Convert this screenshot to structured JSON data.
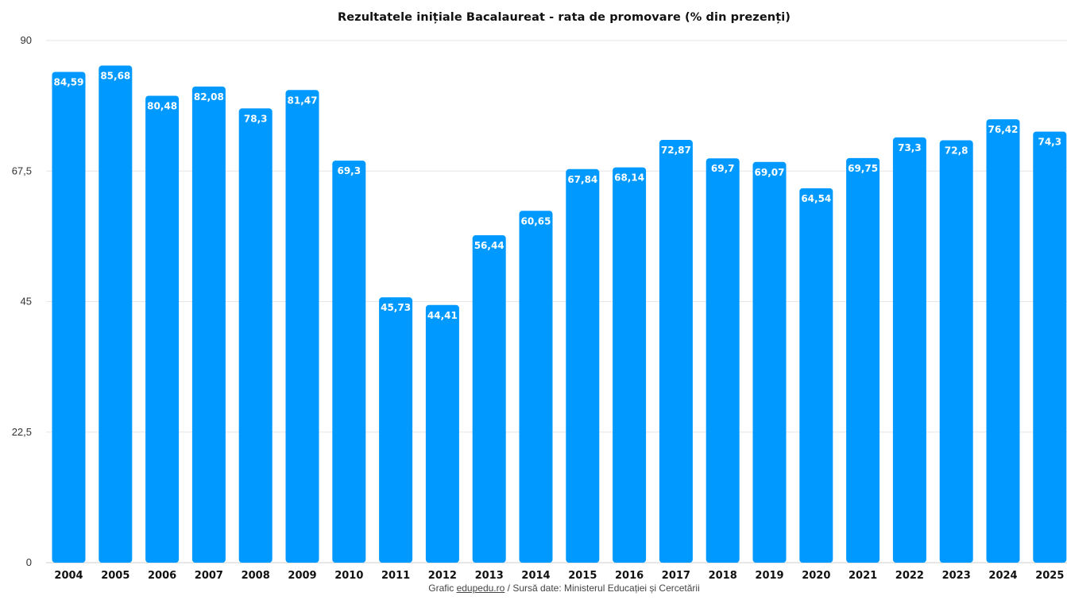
{
  "chart_data": {
    "type": "bar",
    "title": "Rezultatele inițiale Bacalaureat - rata de promovare (% din prezenți)",
    "categories": [
      "2004",
      "2005",
      "2006",
      "2007",
      "2008",
      "2009",
      "2010",
      "2011",
      "2012",
      "2013",
      "2014",
      "2015",
      "2016",
      "2017",
      "2018",
      "2019",
      "2020",
      "2021",
      "2022",
      "2023",
      "2024",
      "2025"
    ],
    "values": [
      84.59,
      85.68,
      80.48,
      82.08,
      78.3,
      81.47,
      69.3,
      45.73,
      44.41,
      56.44,
      60.65,
      67.84,
      68.14,
      72.87,
      69.7,
      69.07,
      64.54,
      69.75,
      73.3,
      72.8,
      76.42,
      74.3
    ],
    "data_labels": [
      "84,59",
      "85,68",
      "80,48",
      "82,08",
      "78,3",
      "81,47",
      "69,3",
      "45,73",
      "44,41",
      "56,44",
      "60,65",
      "67,84",
      "68,14",
      "72,87",
      "69,7",
      "69,07",
      "64,54",
      "69,75",
      "73,3",
      "72,8",
      "76,42",
      "74,3"
    ],
    "ylim": [
      0,
      90
    ],
    "yticks": [
      0,
      22.5,
      45,
      67.5,
      90
    ],
    "ytick_labels": [
      "0",
      "22,5",
      "45",
      "67,5",
      "90"
    ],
    "xlabel": "",
    "ylabel": "",
    "grid": true,
    "legend": "none",
    "bar_color": "#0099FF",
    "grid_color": "#E6E6E6"
  },
  "footer": {
    "prefix": "Grafic ",
    "link_text": "edupedu.ro",
    "suffix": " / Sursă date: Ministerul Educației și Cercetării"
  }
}
